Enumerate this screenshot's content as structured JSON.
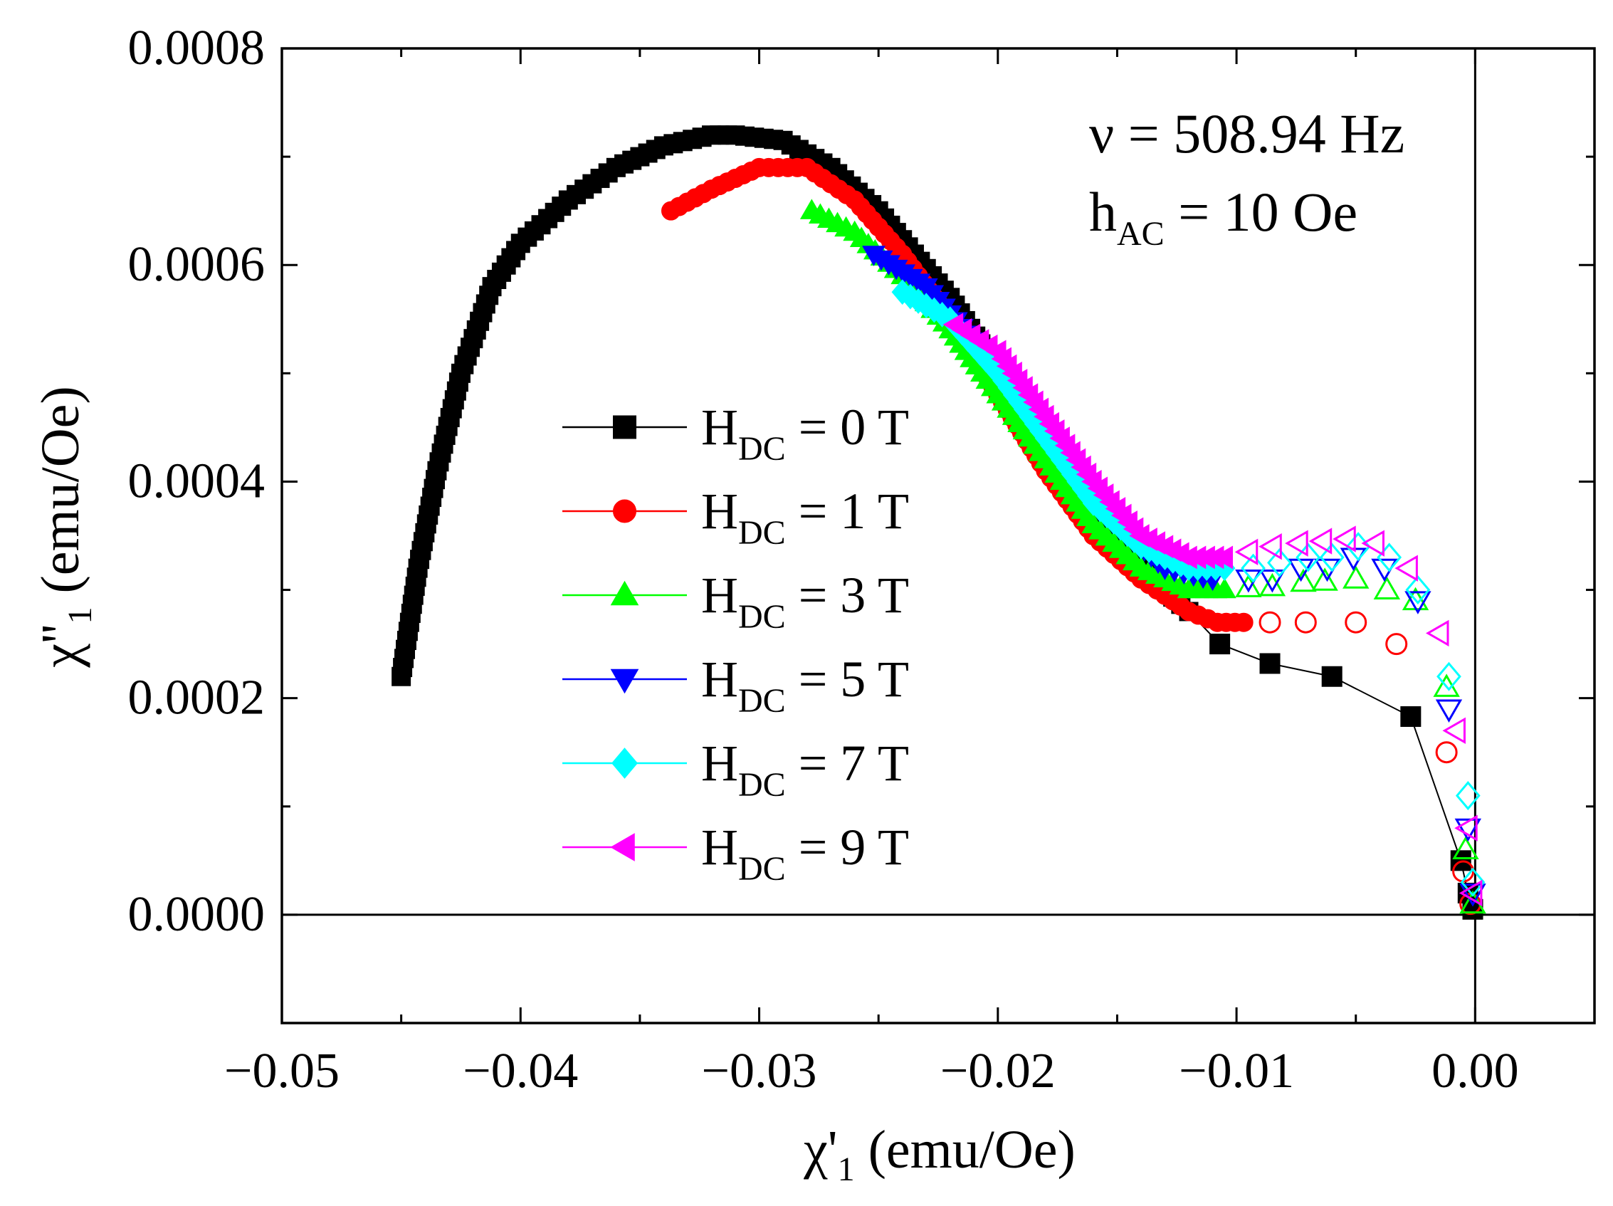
{
  "chart_data": {
    "type": "scatter",
    "title": "",
    "xlabel": {
      "main": "χ'",
      "sub": "1",
      "unit": " (emu/Oe)"
    },
    "ylabel": {
      "main": "χ''",
      "sub": "1",
      "unit": " (emu/Oe)"
    },
    "xlim": [
      -0.05,
      0.005
    ],
    "ylim": [
      -0.0001,
      0.0008
    ],
    "xticks": [
      -0.05,
      -0.04,
      -0.03,
      -0.02,
      -0.01,
      0.0
    ],
    "xtick_labels": [
      "−0.05",
      "−0.04",
      "−0.03",
      "−0.02",
      "−0.01",
      "0.00"
    ],
    "yticks": [
      0.0,
      0.0002,
      0.0004,
      0.0006,
      0.0008
    ],
    "ytick_labels": [
      "0.0000",
      "0.0002",
      "0.0004",
      "0.0006",
      "0.0008"
    ],
    "reference_lines": {
      "x": 0.0,
      "y": 0.0
    },
    "annotations": {
      "frequency": "ν = 508.94 Hz",
      "amplitude_main": "h",
      "amplitude_sub": "AC",
      "amplitude_rest": " = 10 Oe"
    },
    "legend": {
      "placement": "center-left",
      "entries": [
        {
          "pre": "H",
          "sub": "DC",
          "rest": " = 0 T"
        },
        {
          "pre": "H",
          "sub": "DC",
          "rest": " = 1 T"
        },
        {
          "pre": "H",
          "sub": "DC",
          "rest": " = 3 T"
        },
        {
          "pre": "H",
          "sub": "DC",
          "rest": " = 5 T"
        },
        {
          "pre": "H",
          "sub": "DC",
          "rest": " = 7 T"
        },
        {
          "pre": "H",
          "sub": "DC",
          "rest": " = 9 T"
        }
      ]
    },
    "series": [
      {
        "name": "H_DC = 0 T",
        "color": "#000000",
        "marker": "square",
        "dense_points": [
          [
            -0.045,
            0.00022
          ],
          [
            -0.0443,
            0.00032
          ],
          [
            -0.0435,
            0.00041
          ],
          [
            -0.0425,
            0.0005
          ],
          [
            -0.0412,
            0.00058
          ],
          [
            -0.04,
            0.00062
          ],
          [
            -0.038,
            0.00066
          ],
          [
            -0.036,
            0.00069
          ],
          [
            -0.034,
            0.00071
          ],
          [
            -0.032,
            0.00072
          ],
          [
            -0.031,
            0.00072
          ],
          [
            -0.029,
            0.000715
          ],
          [
            -0.027,
            0.00069
          ],
          [
            -0.025,
            0.00065
          ],
          [
            -0.0235,
            0.00061
          ],
          [
            -0.022,
            0.00057
          ],
          [
            -0.0205,
            0.00052
          ],
          [
            -0.019,
            0.00048
          ],
          [
            -0.0175,
            0.00043
          ],
          [
            -0.016,
            0.00038
          ],
          [
            -0.0145,
            0.00034
          ],
          [
            -0.013,
            0.0003
          ],
          [
            -0.012,
            0.00028
          ]
        ],
        "sparse_points": [
          [
            -0.0107,
            0.00025
          ],
          [
            -0.0086,
            0.000232
          ],
          [
            -0.006,
            0.00022
          ],
          [
            -0.0027,
            0.000183
          ],
          [
            -0.0006,
            5e-05
          ],
          [
            -0.0003,
            2e-05
          ],
          [
            -0.0001,
            5e-06
          ]
        ]
      },
      {
        "name": "H_DC = 1 T",
        "color": "#ff0000",
        "marker": "circle",
        "dense_points": [
          [
            -0.0337,
            0.00065
          ],
          [
            -0.032,
            0.00067
          ],
          [
            -0.03,
            0.00069
          ],
          [
            -0.028,
            0.00069
          ],
          [
            -0.026,
            0.00066
          ],
          [
            -0.024,
            0.00061
          ],
          [
            -0.022,
            0.00055
          ],
          [
            -0.02,
            0.00048
          ],
          [
            -0.018,
            0.00041
          ],
          [
            -0.016,
            0.00035
          ],
          [
            -0.014,
            0.00031
          ],
          [
            -0.012,
            0.00028
          ],
          [
            -0.0108,
            0.00027
          ],
          [
            -0.0097,
            0.00027
          ]
        ],
        "sparse_points": [
          [
            -0.0086,
            0.00027
          ],
          [
            -0.0071,
            0.00027
          ],
          [
            -0.005,
            0.00027
          ],
          [
            -0.0033,
            0.00025
          ],
          [
            -0.0012,
            0.00015
          ],
          [
            -0.0005,
            4e-05
          ],
          [
            -0.0002,
            1e-05
          ]
        ]
      },
      {
        "name": "H_DC = 3 T",
        "color": "#00ff00",
        "marker": "triangle-up",
        "dense_points": [
          [
            -0.0278,
            0.00065
          ],
          [
            -0.026,
            0.00063
          ],
          [
            -0.024,
            0.00059
          ],
          [
            -0.022,
            0.00054
          ],
          [
            -0.02,
            0.00048
          ],
          [
            -0.018,
            0.00042
          ],
          [
            -0.016,
            0.00036
          ],
          [
            -0.014,
            0.00032
          ],
          [
            -0.012,
            0.0003
          ],
          [
            -0.0105,
            0.0003
          ]
        ],
        "sparse_points": [
          [
            -0.0095,
            0.000302
          ],
          [
            -0.0085,
            0.000303
          ],
          [
            -0.0072,
            0.000307
          ],
          [
            -0.0063,
            0.000308
          ],
          [
            -0.005,
            0.00031
          ],
          [
            -0.0037,
            0.0003
          ],
          [
            -0.0025,
            0.00029
          ],
          [
            -0.0012,
            0.00021
          ],
          [
            -0.0004,
            6e-05
          ],
          [
            -0.0001,
            1e-05
          ]
        ]
      },
      {
        "name": "H_DC = 5 T",
        "color": "#0000ff",
        "marker": "triangle-down",
        "dense_points": [
          [
            -0.0252,
            0.00061
          ],
          [
            -0.023,
            0.00058
          ],
          [
            -0.021,
            0.00053
          ],
          [
            -0.019,
            0.00047
          ],
          [
            -0.017,
            0.00041
          ],
          [
            -0.015,
            0.00036
          ],
          [
            -0.013,
            0.00032
          ],
          [
            -0.011,
            0.00031
          ]
        ],
        "sparse_points": [
          [
            -0.0095,
            0.00031
          ],
          [
            -0.0085,
            0.00031
          ],
          [
            -0.0073,
            0.00032
          ],
          [
            -0.0062,
            0.00032
          ],
          [
            -0.0051,
            0.00033
          ],
          [
            -0.0038,
            0.00032
          ],
          [
            -0.0024,
            0.00029
          ],
          [
            -0.0011,
            0.00019
          ],
          [
            -0.0003,
            8e-05
          ],
          [
            -0.0001,
            2e-05
          ]
        ]
      },
      {
        "name": "H_DC = 7 T",
        "color": "#00ffff",
        "marker": "diamond",
        "dense_points": [
          [
            -0.024,
            0.000575
          ],
          [
            -0.022,
            0.00055
          ],
          [
            -0.02,
            0.0005
          ],
          [
            -0.018,
            0.00044
          ],
          [
            -0.016,
            0.00038
          ],
          [
            -0.014,
            0.00034
          ],
          [
            -0.012,
            0.00032
          ],
          [
            -0.0105,
            0.00032
          ]
        ],
        "sparse_points": [
          [
            -0.0093,
            0.00032
          ],
          [
            -0.0082,
            0.000325
          ],
          [
            -0.007,
            0.00033
          ],
          [
            -0.006,
            0.00033
          ],
          [
            -0.0049,
            0.00034
          ],
          [
            -0.0036,
            0.00033
          ],
          [
            -0.0024,
            0.0003
          ],
          [
            -0.0011,
            0.00022
          ],
          [
            -0.0003,
            0.00011
          ],
          [
            -0.0001,
            3e-05
          ]
        ]
      },
      {
        "name": "H_DC = 9 T",
        "color": "#ff00ff",
        "marker": "triangle-left",
        "dense_points": [
          [
            -0.0218,
            0.000545
          ],
          [
            -0.02,
            0.00052
          ],
          [
            -0.018,
            0.00046
          ],
          [
            -0.016,
            0.0004
          ],
          [
            -0.014,
            0.00035
          ],
          [
            -0.012,
            0.00033
          ],
          [
            -0.0105,
            0.00033
          ]
        ],
        "sparse_points": [
          [
            -0.0095,
            0.000335
          ],
          [
            -0.0085,
            0.00034
          ],
          [
            -0.0074,
            0.000343
          ],
          [
            -0.0064,
            0.000345
          ],
          [
            -0.0054,
            0.000347
          ],
          [
            -0.0042,
            0.000343
          ],
          [
            -0.0028,
            0.00032
          ],
          [
            -0.0015,
            0.00026
          ],
          [
            -0.0008,
            0.00017
          ],
          [
            -0.0003,
            8e-05
          ],
          [
            -0.0001,
            2e-05
          ]
        ]
      }
    ]
  }
}
